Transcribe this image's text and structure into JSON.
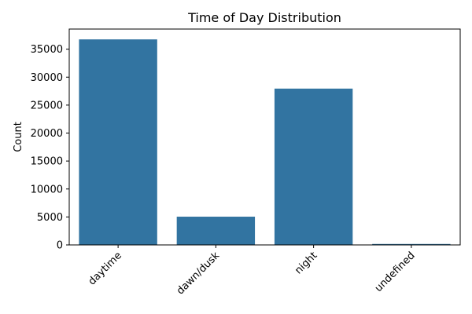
{
  "chart_data": {
    "type": "bar",
    "title": "Time of Day Distribution",
    "xlabel": "",
    "ylabel": "Count",
    "categories": [
      "daytime",
      "dawn/dusk",
      "night",
      "undefined"
    ],
    "values": [
      36750,
      5050,
      27950,
      170
    ],
    "ylim": [
      0,
      38600
    ],
    "yticks": [
      0,
      5000,
      10000,
      15000,
      20000,
      25000,
      30000,
      35000
    ],
    "bar_color": "#3274a1",
    "grid": false,
    "legend": "none"
  }
}
